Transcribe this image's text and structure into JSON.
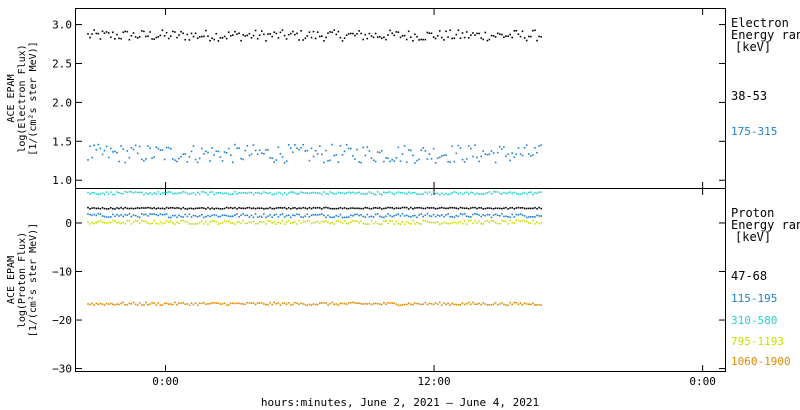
{
  "chart_data": [
    {
      "type": "scatter",
      "panel": "electron",
      "ylabel_lines": [
        "ACE EPAM",
        "log(Electron Flux)",
        "[1/(cm²s ster MeV)]"
      ],
      "ylim": [
        0.9,
        3.2
      ],
      "yticks": [
        1.0,
        1.5,
        2.0,
        2.5,
        3.0
      ],
      "ytick_labels": [
        "1.0",
        "1.5",
        "2.0",
        "2.5",
        "3.0"
      ],
      "legend_title": [
        "Electron",
        "Energy range",
        "[keV]"
      ],
      "series": [
        {
          "name": "38-53",
          "color": "#000000",
          "x_range": [
            "2021-06-02T20:30",
            "2021-06-03T16:45"
          ],
          "mean": 2.87,
          "spread": 0.07
        },
        {
          "name": "175-315",
          "color": "#1e7fd4",
          "x_range": [
            "2021-06-02T20:30",
            "2021-06-03T16:45"
          ],
          "mean": 1.35,
          "spread": 0.12
        }
      ]
    },
    {
      "type": "scatter",
      "panel": "proton",
      "ylabel_lines": [
        "ACE EPAM",
        "log(Proton Flux)",
        "[1/(cm²s ster MeV)]"
      ],
      "ylim": [
        -30.5,
        7
      ],
      "yticks": [
        0,
        -10,
        -20,
        -30
      ],
      "ytick_labels": [
        "0",
        "−10",
        "−20",
        "−30"
      ],
      "legend_title": [
        "Proton",
        "Energy range",
        "[keV]"
      ],
      "series": [
        {
          "name": "47-68",
          "color": "#000000",
          "x_range": [
            "2021-06-02T20:30",
            "2021-06-03T16:45"
          ],
          "mean": 3.2,
          "spread": 0.15
        },
        {
          "name": "115-195",
          "color": "#1e7fd4",
          "x_range": [
            "2021-06-02T20:30",
            "2021-06-03T16:45"
          ],
          "mean": 1.7,
          "spread": 0.4
        },
        {
          "name": "310-580",
          "color": "#22d3d0",
          "x_range": [
            "2021-06-02T20:30",
            "2021-06-03T16:45"
          ],
          "mean": 6.3,
          "spread": 0.3
        },
        {
          "name": "795-1193",
          "color": "#c8e000",
          "x_range": [
            "2021-06-02T20:30",
            "2021-06-03T16:45"
          ],
          "mean": 0.3,
          "spread": 0.4
        },
        {
          "name": "1060-1900",
          "color": "#e08a00",
          "x_range": [
            "2021-06-02T20:30",
            "2021-06-03T16:45"
          ],
          "mean": -16.5,
          "spread": 0.3
        }
      ]
    }
  ],
  "x_axis": {
    "range": [
      "2021-06-02T20:00",
      "2021-06-04T01:00"
    ],
    "ticks": [
      "2021-06-03T00:00",
      "2021-06-03T12:00",
      "2021-06-04T00:00"
    ],
    "tick_labels": [
      "0:00",
      "12:00",
      "0:00"
    ],
    "label": "hours:minutes, June  2, 2021 – June  4, 2021"
  }
}
